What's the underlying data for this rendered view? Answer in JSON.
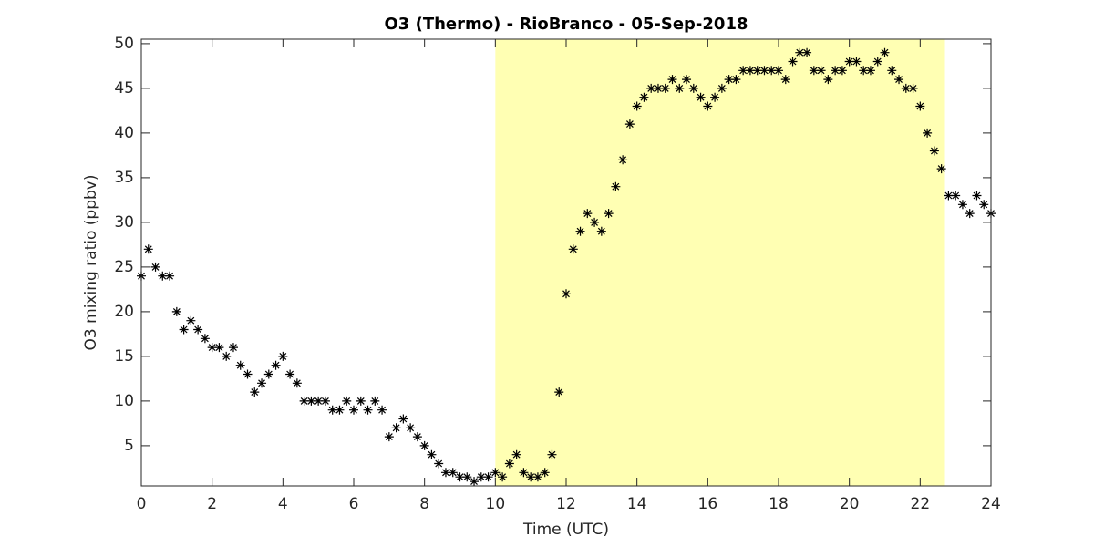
{
  "chart_data": {
    "type": "scatter",
    "title": "O3 (Thermo) - RioBranco - 05-Sep-2018",
    "x_label": "Time (UTC)",
    "y_label": "O3 mixing ratio (ppbv)",
    "xlim": [
      0,
      24
    ],
    "ylim": [
      0.5,
      50.5
    ],
    "xticks": [
      0,
      2,
      4,
      6,
      8,
      10,
      12,
      14,
      16,
      18,
      20,
      22,
      24
    ],
    "yticks": [
      5,
      10,
      15,
      20,
      25,
      30,
      35,
      40,
      45,
      50
    ],
    "shaded_span": [
      10,
      22.7
    ],
    "shade_color": "#ffffb3",
    "marker": "asterisk",
    "series": [
      {
        "name": "O3",
        "color": "#000000",
        "x": [
          0,
          0.2,
          0.4,
          0.6,
          0.8,
          1.0,
          1.2,
          1.4,
          1.6,
          1.8,
          2.0,
          2.2,
          2.4,
          2.6,
          2.8,
          3.0,
          3.2,
          3.4,
          3.6,
          3.8,
          4.0,
          4.2,
          4.4,
          4.6,
          4.8,
          5.0,
          5.2,
          5.4,
          5.6,
          5.8,
          6.0,
          6.2,
          6.4,
          6.6,
          6.8,
          7.0,
          7.2,
          7.4,
          7.6,
          7.8,
          8.0,
          8.2,
          8.4,
          8.6,
          8.8,
          9.0,
          9.2,
          9.4,
          9.6,
          9.8,
          10.0,
          10.2,
          10.4,
          10.6,
          10.8,
          11.0,
          11.2,
          11.4,
          11.6,
          11.8,
          12.0,
          12.2,
          12.4,
          12.6,
          12.8,
          13.0,
          13.2,
          13.4,
          13.6,
          13.8,
          14.0,
          14.2,
          14.4,
          14.6,
          14.8,
          15.0,
          15.2,
          15.4,
          15.6,
          15.8,
          16.0,
          16.2,
          16.4,
          16.6,
          16.8,
          17.0,
          17.2,
          17.4,
          17.6,
          17.8,
          18.0,
          18.2,
          18.4,
          18.6,
          18.8,
          19.0,
          19.2,
          19.4,
          19.6,
          19.8,
          20.0,
          20.2,
          20.4,
          20.6,
          20.8,
          21.0,
          21.2,
          21.4,
          21.6,
          21.8,
          22.0,
          22.2,
          22.4,
          22.6,
          22.8,
          23.0,
          23.2,
          23.4,
          23.6,
          23.8,
          24.0
        ],
        "values": [
          24,
          27,
          25,
          24,
          24,
          20,
          18,
          19,
          18,
          17,
          16,
          16,
          15,
          16,
          14,
          13,
          11,
          12,
          13,
          14,
          15,
          13,
          12,
          10,
          10,
          10,
          10,
          9,
          9,
          10,
          9,
          10,
          9,
          10,
          9,
          6,
          7,
          8,
          7,
          6,
          5,
          4,
          3,
          2,
          2,
          1.5,
          1.5,
          1,
          1.5,
          1.5,
          2,
          1.5,
          3,
          4,
          2,
          1.5,
          1.5,
          2,
          4,
          11,
          22,
          27,
          29,
          31,
          30,
          29,
          31,
          34,
          37,
          41,
          43,
          44,
          45,
          45,
          45,
          46,
          45,
          46,
          45,
          44,
          43,
          44,
          45,
          46,
          46,
          47,
          47,
          47,
          47,
          47,
          47,
          46,
          48,
          49,
          49,
          47,
          47,
          46,
          47,
          47,
          48,
          48,
          47,
          47,
          48,
          49,
          47,
          46,
          45,
          45,
          43,
          40,
          38,
          36,
          33,
          33,
          32,
          31,
          33,
          32,
          31
        ]
      }
    ]
  }
}
